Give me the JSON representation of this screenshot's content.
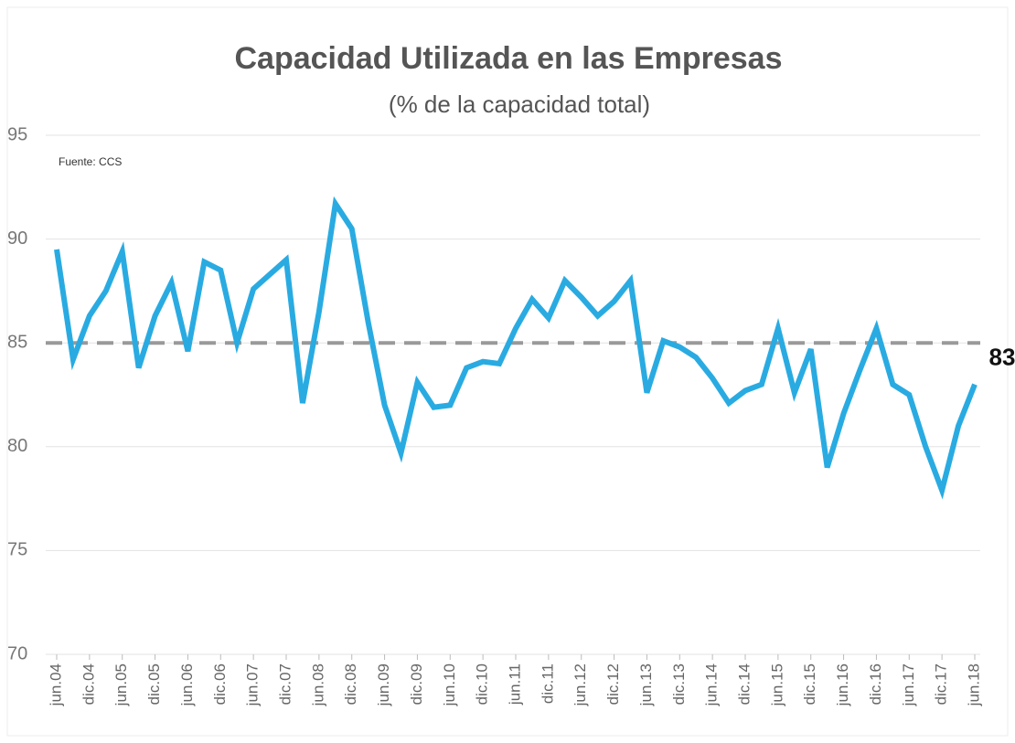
{
  "chart_data": {
    "type": "line",
    "title": "Capacidad Utilizada en las Empresas",
    "subtitle": "(% de la capacidad total)",
    "source": "Fuente: CCS",
    "categories": [
      "jun.04",
      null,
      "dic.04",
      null,
      "jun.05",
      null,
      "dic.05",
      null,
      "jun.06",
      null,
      "dic.06",
      null,
      "jun.07",
      null,
      "dic.07",
      null,
      "jun.08",
      null,
      "dic.08",
      null,
      "jun.09",
      null,
      "dic.09",
      null,
      "jun.10",
      null,
      "dic.10",
      null,
      "jun.11",
      null,
      "dic.11",
      null,
      "jun.12",
      null,
      "dic.12",
      null,
      "jun.13",
      null,
      "dic.13",
      null,
      "jun.14",
      null,
      "dic.14",
      null,
      "jun.15",
      null,
      "dic.15",
      null,
      "jun.16",
      null,
      "dic.16",
      null,
      "jun.17",
      null,
      "dic.17",
      null,
      "jun.18"
    ],
    "series": [
      {
        "name": "Capacidad utilizada",
        "color": "#29abe2",
        "values": [
          89.5,
          84.2,
          86.3,
          87.5,
          89.4,
          83.8,
          86.3,
          87.9,
          84.6,
          88.9,
          88.5,
          85.0,
          87.6,
          88.3,
          89.0,
          82.1,
          86.5,
          91.7,
          90.5,
          86.0,
          82.0,
          79.7,
          83.1,
          81.9,
          82.0,
          83.8,
          84.1,
          84.0,
          85.7,
          87.1,
          86.2,
          88.0,
          87.2,
          86.3,
          87.0,
          88.0,
          82.6,
          85.1,
          84.8,
          84.3,
          83.3,
          82.1,
          82.7,
          83.0,
          85.7,
          82.6,
          84.7,
          79.0,
          81.6,
          83.7,
          85.7,
          83.0,
          82.5,
          80.0,
          77.9,
          81.0,
          83
        ]
      }
    ],
    "reference_line": 85,
    "reference_color": "#999999",
    "ylim": [
      70,
      95
    ],
    "yticks": [
      70,
      75,
      80,
      85,
      90,
      95
    ],
    "grid": true
  }
}
